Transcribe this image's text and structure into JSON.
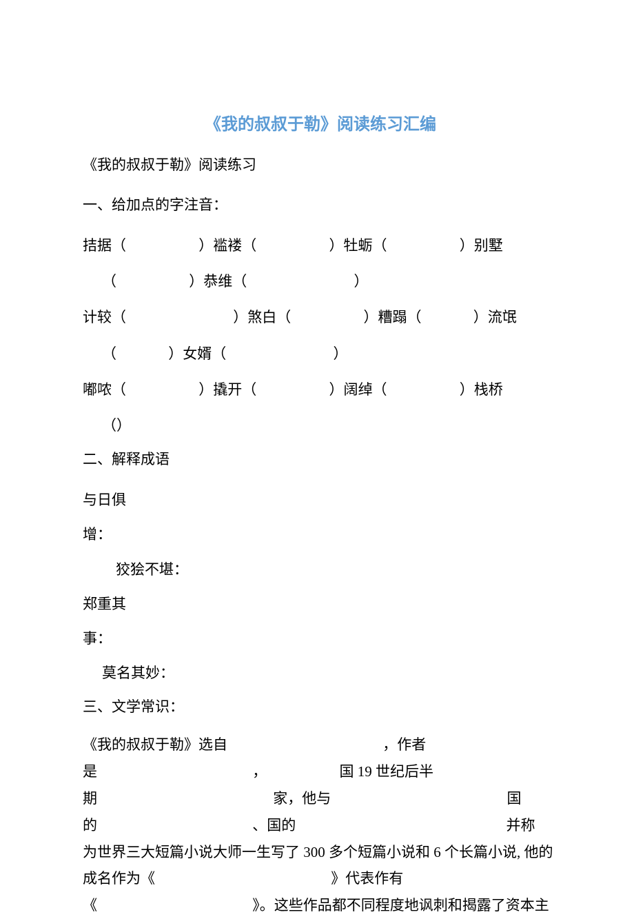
{
  "title_color": "#5b9bd5",
  "title": "《我的叔叔于勒》阅读练习汇编",
  "subtitle": "《我的叔叔于勒》阅读练习",
  "s1": {
    "head": "一、给加点的字注音：",
    "r1": {
      "a": "拮据（",
      "b": "）褴褛（",
      "c": "）牡蛎（",
      "d": "）别墅"
    },
    "r1b": {
      "a": "（",
      "b": "）恭维（",
      "c": "）"
    },
    "r2": {
      "a": "计较（",
      "b": "）煞白（",
      "c": "）糟蹋（",
      "d": "）流氓"
    },
    "r2b": {
      "a": "（",
      "b": "）女婿（",
      "c": "）"
    },
    "r3": {
      "a": "嘟哝（",
      "b": "）撬开（",
      "c": "）阔绰（",
      "d": "）栈桥"
    },
    "r3b": {
      "a": "（）"
    }
  },
  "s2": {
    "head": "二、解释成语",
    "i1a": "与日俱",
    "i1b": "增：",
    "i1c": "狡狯不堪：",
    "i2a": "郑重其",
    "i2b": "事：",
    "i2c": "莫名其妙："
  },
  "s3": {
    "head": "三、文学常识：",
    "p1": "《我的叔叔于勒》选自",
    "p1b": "，作者",
    "p2": "是",
    "p2b": "，",
    "p2c": "国 19 世纪后半",
    "p3": "期",
    "p3b": "家，他与",
    "p3c": "国",
    "p4": "的",
    "p4b": "、国的",
    "p4c": "并称",
    "p5": "为世界三大短篇小说大师一生写了 300 多个短篇小说和 6 个长篇小说, 他的",
    "p6": "成名作为《",
    "p6b": "》代表作有",
    "p7": "《",
    "p7b": "》。这些作品都不同程度地讽刺和揭露了资本主"
  }
}
